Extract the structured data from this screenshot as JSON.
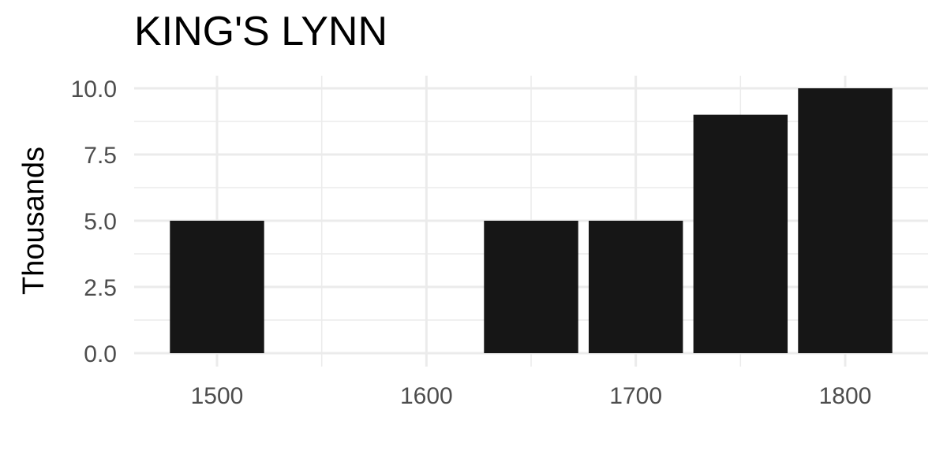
{
  "chart_data": {
    "type": "bar",
    "title": "KING'S LYNN",
    "xlabel": "",
    "ylabel": "Thousands",
    "x": [
      1500,
      1650,
      1700,
      1750,
      1800
    ],
    "values": [
      5,
      5,
      5,
      9,
      10
    ],
    "bar_width_years": 45,
    "xlim": [
      1460,
      1840
    ],
    "ylim": [
      0,
      10.0
    ],
    "x_ticks": [
      1500,
      1600,
      1700,
      1800
    ],
    "x_tick_labels": [
      "1500",
      "1600",
      "1700",
      "1800"
    ],
    "y_ticks": [
      0,
      2.5,
      5,
      7.5,
      10
    ],
    "y_tick_labels": [
      "0.0",
      "2.5",
      "5.0",
      "7.5",
      "10.0"
    ],
    "grid": true,
    "legend": "none",
    "colors": {
      "bar": "#161616",
      "grid": "#ebebeb"
    }
  }
}
